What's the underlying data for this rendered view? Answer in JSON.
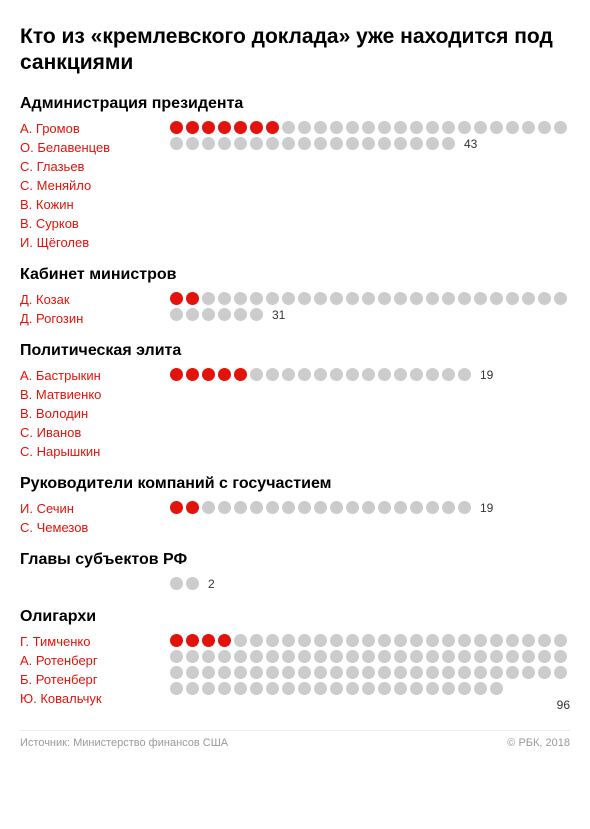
{
  "title": "Кто из «кремлевского доклада» уже находится под санкциями",
  "colors": {
    "filled": "#e3120b",
    "empty": "#cccccc",
    "name": "#e3120b",
    "text": "#000000",
    "footer": "#999999"
  },
  "dot_size": 13,
  "dot_gap": 3,
  "dots_per_row_max": 25,
  "sections": [
    {
      "title": "Администрация президента",
      "names": [
        "А. Громов",
        "О. Белавенцев",
        "С. Глазьев",
        "С. Меняйло",
        "В. Кожин",
        "В. Сурков",
        "И. Щёголев"
      ],
      "filled": 7,
      "total": 43,
      "count_placement": "inline-second-row",
      "rows": [
        25,
        18
      ]
    },
    {
      "title": "Кабинет министров",
      "names": [
        "Д. Козак",
        "Д. Рогозин"
      ],
      "filled": 2,
      "total": 31,
      "count_placement": "inline-second-row",
      "rows": [
        25,
        6
      ]
    },
    {
      "title": "Политическая элита",
      "names": [
        "А. Бастрыкин",
        "В. Матвиенко",
        "В. Володин",
        "С. Иванов",
        "С. Нарышкин"
      ],
      "filled": 5,
      "total": 19,
      "count_placement": "inline-first-row",
      "rows": [
        19
      ]
    },
    {
      "title": "Руководители компаний с госучастием",
      "names": [
        "И. Сечин",
        "С. Чемезов"
      ],
      "filled": 2,
      "total": 19,
      "count_placement": "inline-first-row",
      "rows": [
        19
      ]
    },
    {
      "title": "Главы субъектов РФ",
      "names": [],
      "filled": 0,
      "total": 2,
      "count_placement": "inline-first-row",
      "rows": [
        2
      ]
    },
    {
      "title": "Олигархи",
      "names": [
        "Г. Тимченко",
        "А. Ротенберг",
        "Б. Ротенберг",
        "Ю. Ковальчук"
      ],
      "filled": 4,
      "total": 96,
      "count_placement": "below",
      "rows": [
        25,
        25,
        25,
        21
      ]
    }
  ],
  "footer_left": "Источник: Министерство финансов США",
  "footer_right": "© РБК, 2018"
}
